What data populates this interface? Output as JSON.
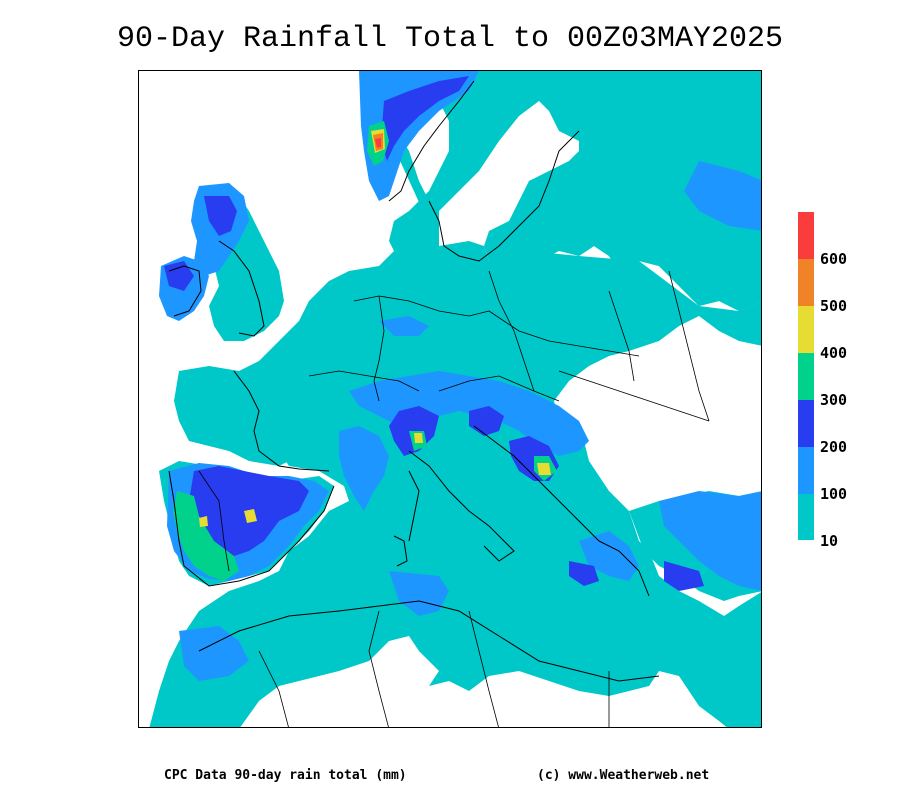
{
  "title": "90-Day Rainfall Total to 00Z03MAY2025",
  "legend": {
    "labels": [
      "600",
      "500",
      "400",
      "300",
      "200",
      "100",
      "10"
    ],
    "colors": {
      "c10_100": "#00c8c8",
      "c100_200": "#1e96ff",
      "c200_300": "#283cf0",
      "c300_400": "#00d28c",
      "c400_500": "#e6dc32",
      "c500_600": "#f08228",
      "c600_plus": "#fa3c3c"
    }
  },
  "footer": {
    "left": "CPC Data 90-day rain total (mm)",
    "right": "(c) www.Weatherweb.net"
  }
}
